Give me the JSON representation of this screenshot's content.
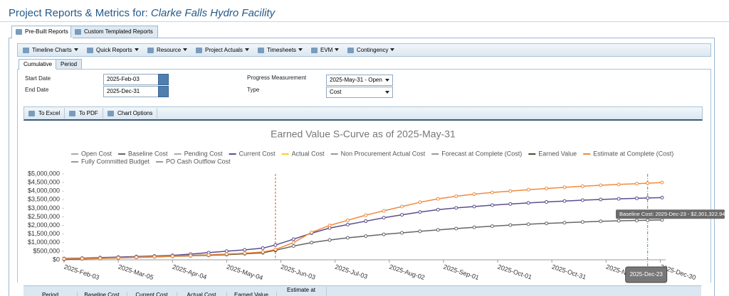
{
  "header": {
    "title": "Project Reports & Metrics for:",
    "project": "Clarke Falls Hydro Facility"
  },
  "tabs": [
    "Pre-Built Reports",
    "Custom Templated Reports"
  ],
  "menu": [
    "Timeline Charts",
    "Quick Reports",
    "Resource",
    "Project Actuals",
    "Timesheets",
    "EVM",
    "Contingency"
  ],
  "subtabs": [
    "Cumulative",
    "Period"
  ],
  "form": {
    "start_date_label": "Start Date",
    "start_date": "2025-Feb-03",
    "end_date_label": "End Date",
    "end_date": "2025-Dec-31",
    "progress_label": "Progress Measurement",
    "progress": "2025-May-31 - Open",
    "type_label": "Type",
    "type": "Cost"
  },
  "actions": [
    "To Excel",
    "To PDF",
    "Chart Options"
  ],
  "chart_data": {
    "type": "line",
    "title": "Earned Value S-Curve as of 2025-May-31",
    "x": [
      "2025-Feb-03",
      "2025-Feb-13",
      "2025-Feb-23",
      "2025-Mar-05",
      "2025-Mar-15",
      "2025-Mar-25",
      "2025-Apr-04",
      "2025-Apr-14",
      "2025-Apr-24",
      "2025-May-04",
      "2025-May-14",
      "2025-May-24",
      "2025-May-31",
      "2025-Jun-10",
      "2025-Jun-20",
      "2025-Jun-30",
      "2025-Jul-10",
      "2025-Jul-20",
      "2025-Jul-30",
      "2025-Aug-09",
      "2025-Aug-19",
      "2025-Aug-29",
      "2025-Sep-08",
      "2025-Sep-18",
      "2025-Sep-28",
      "2025-Oct-08",
      "2025-Oct-18",
      "2025-Oct-28",
      "2025-Nov-07",
      "2025-Nov-17",
      "2025-Nov-27",
      "2025-Dec-07",
      "2025-Dec-17",
      "2025-Dec-23",
      "2025-Dec-31"
    ],
    "xlim": [
      "2025-Feb-03",
      "2025-Dec-31"
    ],
    "xticks": [
      "2025-Feb-03",
      "2025-Mar-05",
      "2025-Apr-04",
      "2025-May-04",
      "2025-Jun-03",
      "2025-Jul-03",
      "2025-Aug-02",
      "2025-Sep-01",
      "2025-Oct-01",
      "2025-Oct-31",
      "2025-Nov-30",
      "2025-Dec-30"
    ],
    "ylim": [
      0,
      5000000
    ],
    "yticks": [
      {
        "value": 0,
        "label": "$0"
      },
      {
        "value": 500000,
        "label": "$500,000"
      },
      {
        "value": 1000000,
        "label": "$1,000,000"
      },
      {
        "value": 1500000,
        "label": "$1,500,000"
      },
      {
        "value": 2000000,
        "label": "$2,000,000"
      },
      {
        "value": 2500000,
        "label": "$2,500,000"
      },
      {
        "value": 3000000,
        "label": "$3,000,000"
      },
      {
        "value": 3500000,
        "label": "$3,500,000"
      },
      {
        "value": 4000000,
        "label": "$4,000,000"
      },
      {
        "value": 4500000,
        "label": "$4,500,000"
      },
      {
        "value": 5000000,
        "label": "$5,000,000"
      }
    ],
    "series": [
      {
        "name": "Open Cost",
        "color": "#aaaaaa"
      },
      {
        "name": "Baseline Cost",
        "color": "#666666",
        "values": [
          50000,
          80000,
          110000,
          140000,
          170000,
          200000,
          230000,
          260000,
          290000,
          330000,
          380000,
          450000,
          550000,
          800000,
          1000000,
          1150000,
          1280000,
          1380000,
          1480000,
          1570000,
          1660000,
          1740000,
          1820000,
          1890000,
          1960000,
          2020000,
          2070000,
          2120000,
          2160000,
          2200000,
          2240000,
          2270000,
          2290000,
          2301322.94,
          2320000
        ]
      },
      {
        "name": "Pending Cost",
        "color": "#aaaaaa"
      },
      {
        "name": "Current Cost",
        "color": "#5c4d8e",
        "values": [
          80000,
          100000,
          130000,
          160000,
          190000,
          220000,
          260000,
          330000,
          420000,
          500000,
          580000,
          680000,
          860000,
          1200000,
          1550000,
          1850000,
          2050000,
          2250000,
          2450000,
          2620000,
          2780000,
          2920000,
          3020000,
          3100000,
          3180000,
          3250000,
          3310000,
          3370000,
          3420000,
          3470000,
          3510000,
          3550000,
          3580000,
          3600000,
          3620000
        ]
      },
      {
        "name": "Actual Cost",
        "color": "#f2d31b",
        "values": [
          30000,
          60000,
          90000,
          120000,
          150000,
          180000,
          210000,
          240000,
          270000,
          310000,
          360000,
          420000,
          580000,
          null,
          null,
          null,
          null,
          null,
          null,
          null,
          null,
          null,
          null,
          null,
          null,
          null,
          null,
          null,
          null,
          null,
          null,
          null,
          null,
          null,
          null
        ]
      },
      {
        "name": "Non Procurement Actual Cost",
        "color": "#999999"
      },
      {
        "name": "Forecast at Complete (Cost)",
        "color": "#999999"
      },
      {
        "name": "Earned Value",
        "color": "#4d4a2a",
        "values": [
          20000,
          50000,
          80000,
          110000,
          140000,
          170000,
          200000,
          230000,
          260000,
          300000,
          350000,
          410000,
          560000,
          null,
          null,
          null,
          null,
          null,
          null,
          null,
          null,
          null,
          null,
          null,
          null,
          null,
          null,
          null,
          null,
          null,
          null,
          null,
          null,
          null,
          null
        ]
      },
      {
        "name": "Estimate at Complete (Cost)",
        "color": "#f08a3c",
        "values": [
          50000,
          70000,
          90000,
          120000,
          150000,
          180000,
          210000,
          240000,
          280000,
          330000,
          380000,
          450000,
          600000,
          1000000,
          1600000,
          2000000,
          2300000,
          2600000,
          2850000,
          3100000,
          3350000,
          3550000,
          3700000,
          3820000,
          3920000,
          4000000,
          4080000,
          4150000,
          4220000,
          4280000,
          4340000,
          4390000,
          4430000,
          4460000,
          4500000
        ]
      },
      {
        "name": "Fully Committed Budget",
        "color": "#999999"
      },
      {
        "name": "PO Cash Outflow Cost",
        "color": "#999999"
      }
    ],
    "tooltip": "Baseline Cost: 2025-Dec-23 - $2,301,322.94",
    "crosshair_label": "2025-Dec-23"
  },
  "table": {
    "columns": [
      "Period",
      "Baseline Cost",
      "Current Cost",
      "Actual Cost",
      "Earned Value",
      "Estimate at"
    ]
  }
}
